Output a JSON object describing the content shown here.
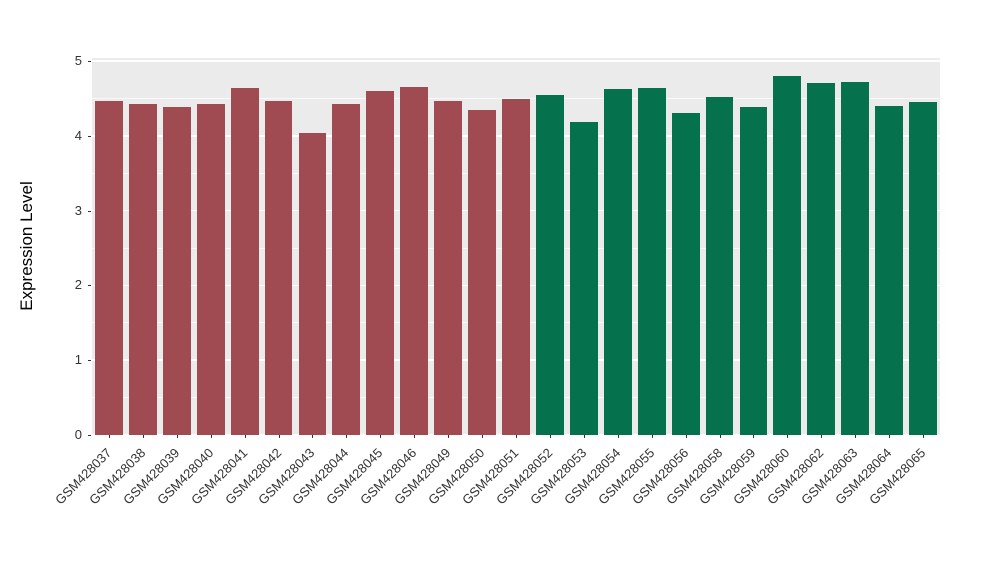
{
  "chart_data": {
    "type": "bar",
    "title": "",
    "xlabel": "",
    "ylabel": "Expression Level",
    "ylim": [
      0,
      5
    ],
    "y_scale_max": 5.04,
    "yticks": [
      0,
      1,
      2,
      3,
      4,
      5
    ],
    "grid": true,
    "legend": "none",
    "panel_bg": "#EBEBEB",
    "grid_color": "#FFFFFF",
    "group_colors": {
      "left_group": "#A04A51",
      "right_group": "#06724D"
    },
    "categories": [
      "GSM428037",
      "GSM428038",
      "GSM428039",
      "GSM428040",
      "GSM428041",
      "GSM428042",
      "GSM428043",
      "GSM428044",
      "GSM428045",
      "GSM428046",
      "GSM428049",
      "GSM428050",
      "GSM428051",
      "GSM428052",
      "GSM428053",
      "GSM428054",
      "GSM428055",
      "GSM428056",
      "GSM428058",
      "GSM428059",
      "GSM428060",
      "GSM428062",
      "GSM428063",
      "GSM428064",
      "GSM428065"
    ],
    "values": [
      4.47,
      4.43,
      4.39,
      4.42,
      4.64,
      4.47,
      4.04,
      4.43,
      4.6,
      4.65,
      4.47,
      4.34,
      4.49,
      4.55,
      4.19,
      4.63,
      4.64,
      4.3,
      4.52,
      4.38,
      4.8,
      4.71,
      4.72,
      4.4,
      4.45
    ],
    "bar_colors": [
      "#A04A51",
      "#A04A51",
      "#A04A51",
      "#A04A51",
      "#A04A51",
      "#A04A51",
      "#A04A51",
      "#A04A51",
      "#A04A51",
      "#A04A51",
      "#A04A51",
      "#A04A51",
      "#A04A51",
      "#06724D",
      "#06724D",
      "#06724D",
      "#06724D",
      "#06724D",
      "#06724D",
      "#06724D",
      "#06724D",
      "#06724D",
      "#06724D",
      "#06724D",
      "#06724D"
    ]
  }
}
